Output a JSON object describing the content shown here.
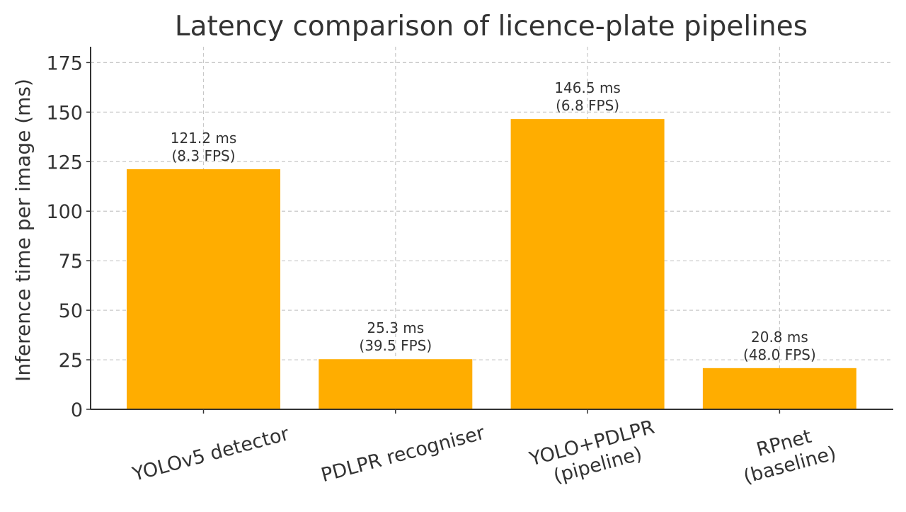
{
  "chart_data": {
    "type": "bar",
    "title": "Latency comparison of licence-plate pipelines",
    "xlabel": "",
    "ylabel": "Inference time per image (ms)",
    "ylim": [
      0,
      183
    ],
    "yticks": [
      0,
      25,
      50,
      75,
      100,
      125,
      150,
      175
    ],
    "grid": true,
    "bar_color": "#FFAD00",
    "categories": [
      [
        "YOLOv5 detector"
      ],
      [
        "PDLPR recogniser"
      ],
      [
        "YOLO+PDLPR",
        "(pipeline)"
      ],
      [
        "RPnet",
        "(baseline)"
      ]
    ],
    "values": [
      121.2,
      25.3,
      146.5,
      20.8
    ],
    "data_labels": [
      [
        "121.2 ms",
        "(8.3 FPS)"
      ],
      [
        "25.3 ms",
        "(39.5 FPS)"
      ],
      [
        "146.5 ms",
        "(6.8 FPS)"
      ],
      [
        "20.8 ms",
        "(48.0 FPS)"
      ]
    ]
  }
}
